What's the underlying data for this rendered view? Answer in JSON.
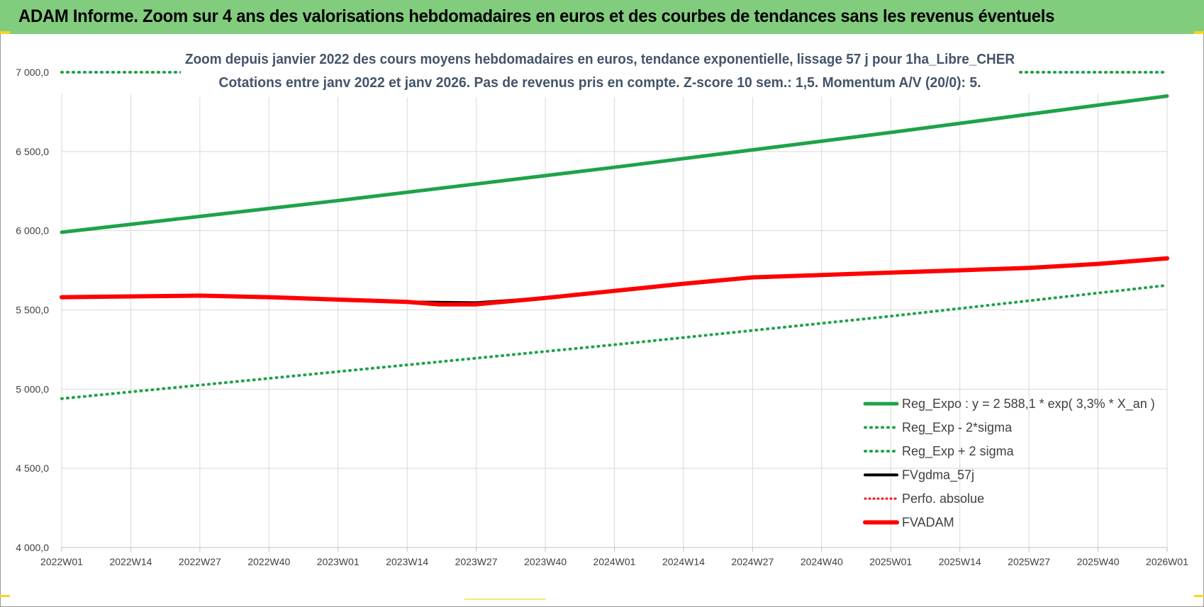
{
  "header": {
    "title": "ADAM Informe. Zoom sur 4 ans des valorisations hebdomadaires en euros et des courbes de tendances sans les revenus éventuels"
  },
  "colors": {
    "header_band": "#82cc7e",
    "reg_expo": "#1fa24a",
    "reg_sigma": "#1fa24a",
    "fvgdma": "#000000",
    "perfo": "#ff0000",
    "fvadam": "#ff0000",
    "grid": "#d9d9d9",
    "title_text": "#44546a"
  },
  "chart_data": {
    "type": "line",
    "title_lines": [
      "Zoom depuis janvier 2022 des cours moyens hebdomadaires en euros, tendance exponentielle, lissage 57 j pour 1ha_Libre_CHER",
      "Cotations entre janv 2022 et janv 2026. Pas de revenus pris en compte. Z-score 10 sem.: 1,5. Momentum A/V (20/0): 5."
    ],
    "xlabel": "",
    "ylabel": "",
    "ylim": [
      4000,
      7000
    ],
    "y_ticks": [
      "4 000,0",
      "4 500,0",
      "5 000,0",
      "5 500,0",
      "6 000,0",
      "6 500,0",
      "7 000,0"
    ],
    "y_tick_values": [
      4000,
      4500,
      5000,
      5500,
      6000,
      6500,
      7000
    ],
    "x_tick_labels": [
      "2022W01",
      "2022W14",
      "2022W27",
      "2022W40",
      "2023W01",
      "2023W14",
      "2023W27",
      "2023W40",
      "2024W01",
      "2024W14",
      "2024W27",
      "2024W40",
      "2025W01",
      "2025W14",
      "2025W27",
      "2025W40",
      "2026W01"
    ],
    "grid": true,
    "legend_position": "bottom-right",
    "series": [
      {
        "name": "Reg_Expo : y = 2 588,1 * exp( 3,3% *  X_an )",
        "style": "solid-thick",
        "x": [
          "2022W01",
          "2023W01",
          "2024W01",
          "2025W01",
          "2026W01"
        ],
        "values": [
          5990,
          6190,
          6400,
          6620,
          6850
        ]
      },
      {
        "name": "Reg_Exp - 2*sigma",
        "style": "dotted",
        "x": [
          "2022W01",
          "2023W01",
          "2024W01",
          "2025W01",
          "2026W01"
        ],
        "values": [
          4940,
          5110,
          5280,
          5460,
          5655
        ]
      },
      {
        "name": "Reg_Exp + 2 sigma",
        "style": "dotted",
        "x": [
          "2022W01",
          "2023W01",
          "2024W01",
          "2025W01",
          "2026W01"
        ],
        "values": [
          7000,
          7000,
          7000,
          7000,
          7000
        ]
      },
      {
        "name": "FVgdma_57j",
        "style": "solid",
        "x": [
          "2022W01",
          "2022W14",
          "2022W27",
          "2022W40",
          "2023W01",
          "2023W14",
          "2023W27",
          "2023W40",
          "2024W01",
          "2024W14",
          "2024W27",
          "2024W40",
          "2025W01",
          "2025W14",
          "2025W27",
          "2025W40",
          "2026W01"
        ],
        "values": [
          5580,
          5585,
          5590,
          5580,
          5565,
          5550,
          5545,
          5575,
          5620,
          5665,
          5705,
          5720,
          5735,
          5750,
          5765,
          5790,
          5825
        ]
      },
      {
        "name": "Perfo. absolue",
        "style": "dotted",
        "x": [],
        "values": []
      },
      {
        "name": "FVADAM",
        "style": "solid-thick",
        "x": [
          "2022W01",
          "2022W14",
          "2022W27",
          "2022W40",
          "2023W01",
          "2023W14",
          "2023W20",
          "2023W27",
          "2023W40",
          "2024W01",
          "2024W14",
          "2024W27",
          "2024W40",
          "2025W01",
          "2025W14",
          "2025W27",
          "2025W40",
          "2026W01"
        ],
        "values": [
          5580,
          5585,
          5590,
          5580,
          5565,
          5550,
          5535,
          5535,
          5575,
          5620,
          5665,
          5705,
          5720,
          5735,
          5750,
          5765,
          5790,
          5825
        ]
      }
    ]
  }
}
